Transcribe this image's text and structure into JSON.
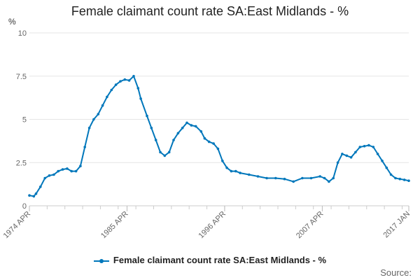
{
  "chart_data": {
    "type": "line",
    "title": "Female claimant count rate SA:East Midlands - %",
    "ylabel": "%",
    "xlabel": "",
    "ylim": [
      0,
      10
    ],
    "yticks": [
      "0",
      "2.5",
      "5",
      "7.5",
      "10"
    ],
    "ytick_values": [
      0,
      2.5,
      5,
      7.5,
      10
    ],
    "xtick_labels": [
      "1974 APR",
      "1985 APR",
      "1996 APR",
      "2007 APR",
      "2017 JAN"
    ],
    "xtick_values": [
      1974.25,
      1985.25,
      1996.25,
      2007.25,
      2017.0
    ],
    "xlim": [
      1974.25,
      2017.0
    ],
    "grid": true,
    "legend_position": "bottom",
    "series": [
      {
        "name": "Female claimant count rate SA:East Midlands - %",
        "color": "#0077bb",
        "x": [
          1974.25,
          1974.75,
          1975.0,
          1975.5,
          1976.0,
          1976.5,
          1977.0,
          1977.5,
          1978.0,
          1978.5,
          1979.0,
          1979.5,
          1980.0,
          1980.5,
          1981.0,
          1981.5,
          1982.0,
          1982.5,
          1983.0,
          1983.5,
          1984.0,
          1984.5,
          1985.0,
          1985.5,
          1986.0,
          1986.5,
          1986.8,
          1987.5,
          1988.0,
          1988.5,
          1989.0,
          1989.5,
          1990.0,
          1990.5,
          1991.0,
          1991.5,
          1992.0,
          1992.5,
          1993.0,
          1993.6,
          1994.0,
          1994.5,
          1995.0,
          1995.5,
          1996.0,
          1996.5,
          1997.0,
          1997.5,
          1998.0,
          1999.0,
          2000.0,
          2001.0,
          2002.0,
          2003.0,
          2004.0,
          2005.0,
          2006.0,
          2007.0,
          2007.5,
          2008.0,
          2008.5,
          2009.0,
          2009.5,
          2010.0,
          2010.5,
          2011.0,
          2011.5,
          2012.0,
          2012.5,
          2013.0,
          2013.5,
          2014.0,
          2014.5,
          2015.0,
          2015.5,
          2016.0,
          2016.5,
          2017.0
        ],
        "values": [
          0.6,
          0.55,
          0.7,
          1.1,
          1.6,
          1.75,
          1.8,
          2.0,
          2.1,
          2.15,
          2.0,
          2.0,
          2.3,
          3.4,
          4.5,
          5.0,
          5.3,
          5.8,
          6.3,
          6.7,
          7.0,
          7.2,
          7.3,
          7.25,
          7.5,
          6.8,
          6.2,
          5.2,
          4.5,
          3.8,
          3.1,
          2.9,
          3.1,
          3.8,
          4.2,
          4.5,
          4.8,
          4.65,
          4.6,
          4.3,
          3.9,
          3.7,
          3.6,
          3.3,
          2.6,
          2.2,
          2.0,
          2.0,
          1.9,
          1.8,
          1.7,
          1.6,
          1.6,
          1.55,
          1.4,
          1.6,
          1.6,
          1.7,
          1.6,
          1.4,
          1.6,
          2.5,
          3.0,
          2.9,
          2.8,
          3.1,
          3.4,
          3.45,
          3.5,
          3.4,
          3.0,
          2.6,
          2.2,
          1.8,
          1.6,
          1.55,
          1.5,
          1.45
        ]
      }
    ]
  },
  "legend": {
    "label": "Female claimant count rate SA:East Midlands - %"
  },
  "source": {
    "label": "Source:"
  }
}
